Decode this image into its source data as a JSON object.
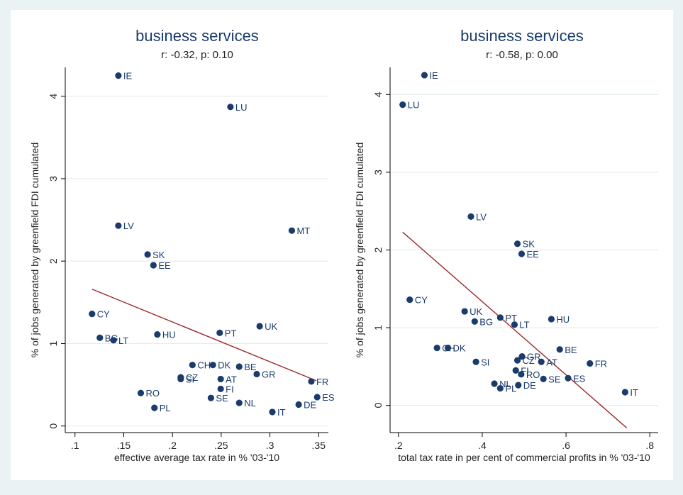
{
  "colors": {
    "outer_background": "#eaf2f3",
    "plot_background": "#ffffff",
    "grid": "#e4ecee",
    "title": "#1a3b6c",
    "text": "#222222",
    "marker": "#1a3b6c",
    "fit_line": "#9b2a2a"
  },
  "chart_data": [
    {
      "type": "scatter",
      "title": "business services",
      "subtitle": "r: -0.32, p: 0.10",
      "xlabel": "effective average tax rate in % '03-'10",
      "ylabel": "% of jobs generated by greenfield FDI cumulated",
      "xlim": [
        0.09,
        0.36
      ],
      "ylim": [
        -0.08,
        4.35
      ],
      "xticks": [
        ".1",
        ".15",
        ".2",
        ".25",
        ".3",
        ".35"
      ],
      "xtick_values": [
        0.1,
        0.15,
        0.2,
        0.25,
        0.3,
        0.35
      ],
      "yticks": [
        "0",
        "1",
        "2",
        "3",
        "4"
      ],
      "ytick_values": [
        0,
        1,
        2,
        3,
        4
      ],
      "grid": true,
      "fit_line": {
        "x": [
          0.1175,
          0.3475
        ],
        "y": [
          1.66,
          0.55
        ]
      },
      "points": [
        {
          "label": "IE",
          "x": 0.1445,
          "y": 4.25
        },
        {
          "label": "LU",
          "x": 0.2595,
          "y": 3.87
        },
        {
          "label": "LV",
          "x": 0.1445,
          "y": 2.43
        },
        {
          "label": "MT",
          "x": 0.3225,
          "y": 2.37
        },
        {
          "label": "SK",
          "x": 0.1745,
          "y": 2.08
        },
        {
          "label": "EE",
          "x": 0.1805,
          "y": 1.95
        },
        {
          "label": "CY",
          "x": 0.1175,
          "y": 1.36
        },
        {
          "label": "UK",
          "x": 0.2895,
          "y": 1.21
        },
        {
          "label": "PT",
          "x": 0.2485,
          "y": 1.13
        },
        {
          "label": "HU",
          "x": 0.1845,
          "y": 1.11
        },
        {
          "label": "BG",
          "x": 0.1255,
          "y": 1.07
        },
        {
          "label": "LT",
          "x": 0.1395,
          "y": 1.04
        },
        {
          "label": "CH",
          "x": 0.2205,
          "y": 0.74
        },
        {
          "label": "DK",
          "x": 0.2415,
          "y": 0.74
        },
        {
          "label": "BE",
          "x": 0.2685,
          "y": 0.72
        },
        {
          "label": "GR",
          "x": 0.2865,
          "y": 0.63
        },
        {
          "label": "CZ",
          "x": 0.2085,
          "y": 0.59
        },
        {
          "label": "SI",
          "x": 0.2085,
          "y": 0.57
        },
        {
          "label": "AT",
          "x": 0.2495,
          "y": 0.57
        },
        {
          "label": "FR",
          "x": 0.3425,
          "y": 0.54
        },
        {
          "label": "FI",
          "x": 0.2495,
          "y": 0.45
        },
        {
          "label": "RO",
          "x": 0.1675,
          "y": 0.4
        },
        {
          "label": "ES",
          "x": 0.3485,
          "y": 0.35
        },
        {
          "label": "SE",
          "x": 0.2395,
          "y": 0.34
        },
        {
          "label": "NL",
          "x": 0.2685,
          "y": 0.28
        },
        {
          "label": "DE",
          "x": 0.3295,
          "y": 0.26
        },
        {
          "label": "PL",
          "x": 0.1815,
          "y": 0.22
        },
        {
          "label": "IT",
          "x": 0.3025,
          "y": 0.17
        }
      ]
    },
    {
      "type": "scatter",
      "title": "business services",
      "subtitle": "r: -0.58, p: 0.00",
      "xlabel": "total tax rate in per cent of commercial profits in % '03-'10",
      "ylabel": "% of jobs generated by greenfield FDI cumulated",
      "xlim": [
        0.18,
        0.82
      ],
      "ylim": [
        -0.35,
        4.35
      ],
      "xticks": [
        ".2",
        ".4",
        ".6",
        ".8"
      ],
      "xtick_values": [
        0.2,
        0.4,
        0.6,
        0.8
      ],
      "yticks": [
        "0",
        "1",
        "2",
        "3",
        "4"
      ],
      "ytick_values": [
        0,
        1,
        2,
        3,
        4
      ],
      "grid": true,
      "fit_line": {
        "x": [
          0.21,
          0.745
        ],
        "y": [
          2.23,
          -0.29
        ]
      },
      "points": [
        {
          "label": "IE",
          "x": 0.262,
          "y": 4.25
        },
        {
          "label": "LU",
          "x": 0.21,
          "y": 3.87
        },
        {
          "label": "LV",
          "x": 0.373,
          "y": 2.43
        },
        {
          "label": "SK",
          "x": 0.484,
          "y": 2.08
        },
        {
          "label": "EE",
          "x": 0.494,
          "y": 1.95
        },
        {
          "label": "CY",
          "x": 0.227,
          "y": 1.36
        },
        {
          "label": "UK",
          "x": 0.358,
          "y": 1.21
        },
        {
          "label": "PT",
          "x": 0.443,
          "y": 1.13
        },
        {
          "label": "HU",
          "x": 0.565,
          "y": 1.11
        },
        {
          "label": "BG",
          "x": 0.382,
          "y": 1.08
        },
        {
          "label": "LT",
          "x": 0.477,
          "y": 1.04
        },
        {
          "label": "BE",
          "x": 0.585,
          "y": 0.72
        },
        {
          "label": "CH",
          "x": 0.292,
          "y": 0.74
        },
        {
          "label": "DK",
          "x": 0.318,
          "y": 0.74
        },
        {
          "label": "GR",
          "x": 0.495,
          "y": 0.63
        },
        {
          "label": "CZ",
          "x": 0.484,
          "y": 0.58
        },
        {
          "label": "AT",
          "x": 0.541,
          "y": 0.56
        },
        {
          "label": "SI",
          "x": 0.385,
          "y": 0.56
        },
        {
          "label": "FR",
          "x": 0.657,
          "y": 0.54
        },
        {
          "label": "FI",
          "x": 0.48,
          "y": 0.45
        },
        {
          "label": "RO",
          "x": 0.493,
          "y": 0.4
        },
        {
          "label": "ES",
          "x": 0.605,
          "y": 0.35
        },
        {
          "label": "SE",
          "x": 0.546,
          "y": 0.34
        },
        {
          "label": "NL",
          "x": 0.429,
          "y": 0.28
        },
        {
          "label": "DE",
          "x": 0.486,
          "y": 0.26
        },
        {
          "label": "PL",
          "x": 0.443,
          "y": 0.22
        },
        {
          "label": "IT",
          "x": 0.741,
          "y": 0.17
        }
      ]
    }
  ]
}
